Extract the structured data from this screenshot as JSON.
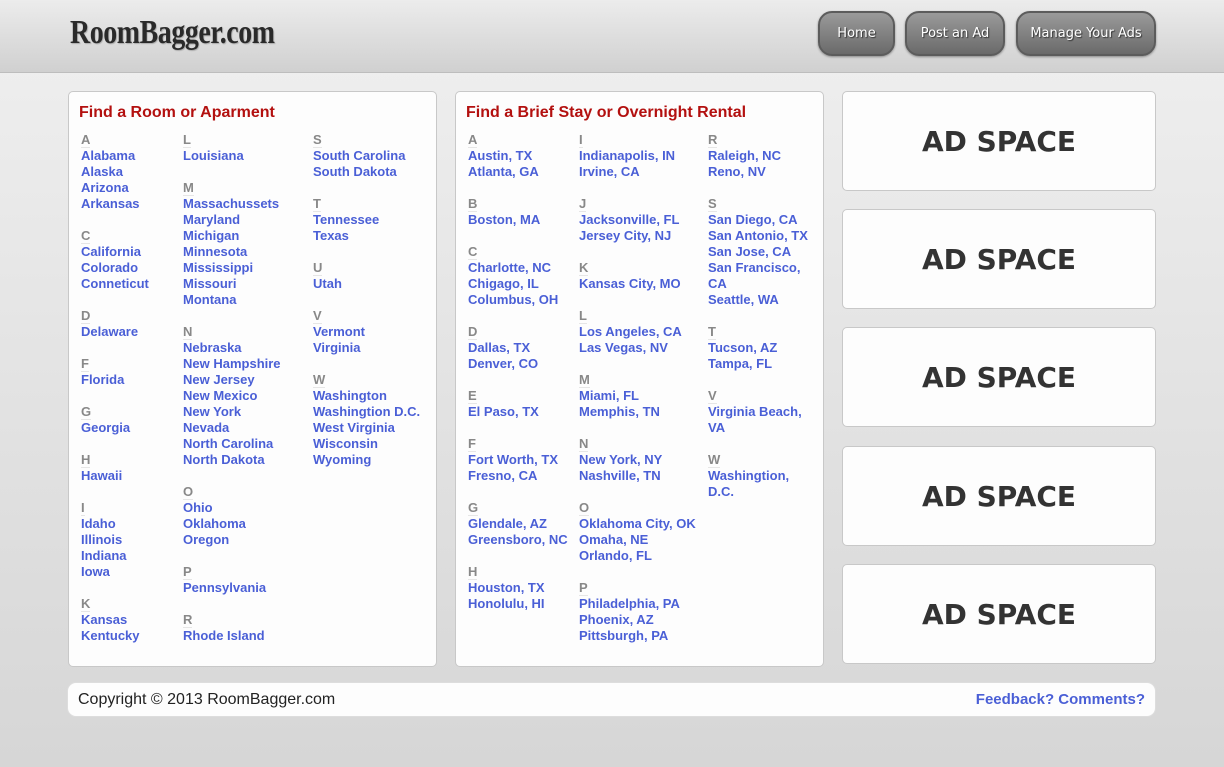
{
  "header": {
    "logo": "RoomBagger.com",
    "nav": [
      "Home",
      "Post an Ad",
      "Manage Your Ads"
    ]
  },
  "rooms": {
    "title": "Find a Room or Aparment",
    "columns": [
      [
        {
          "letter": "A",
          "items": [
            "Alabama",
            "Alaska",
            "Arizona",
            "Arkansas"
          ]
        },
        {
          "letter": "C",
          "items": [
            "California",
            "Colorado",
            "Conneticut"
          ]
        },
        {
          "letter": "D",
          "items": [
            "Delaware"
          ]
        },
        {
          "letter": "F",
          "items": [
            "Florida"
          ]
        },
        {
          "letter": "G",
          "items": [
            "Georgia"
          ]
        },
        {
          "letter": "H",
          "items": [
            "Hawaii"
          ]
        },
        {
          "letter": "I",
          "items": [
            "Idaho",
            "Illinois",
            "Indiana",
            "Iowa"
          ]
        },
        {
          "letter": "K",
          "items": [
            "Kansas",
            "Kentucky"
          ]
        }
      ],
      [
        {
          "letter": "L",
          "items": [
            "Louisiana"
          ]
        },
        {
          "letter": "M",
          "items": [
            "Massachussets",
            "Maryland",
            "Michigan",
            "Minnesota",
            "Mississippi",
            "Missouri",
            "Montana"
          ]
        },
        {
          "letter": "N",
          "items": [
            "Nebraska",
            "New Hampshire",
            "New Jersey",
            "New Mexico",
            "New York",
            "Nevada",
            "North Carolina",
            "North Dakota"
          ]
        },
        {
          "letter": "O",
          "items": [
            "Ohio",
            "Oklahoma",
            "Oregon"
          ]
        },
        {
          "letter": "P",
          "items": [
            "Pennsylvania"
          ]
        },
        {
          "letter": "R",
          "items": [
            "Rhode Island"
          ]
        }
      ],
      [
        {
          "letter": "S",
          "items": [
            "South Carolina",
            "South Dakota"
          ]
        },
        {
          "letter": "T",
          "items": [
            "Tennessee",
            "Texas"
          ]
        },
        {
          "letter": "U",
          "items": [
            "Utah"
          ]
        },
        {
          "letter": "V",
          "items": [
            "Vermont",
            "Virginia"
          ]
        },
        {
          "letter": "W",
          "items": [
            "Washington",
            "Washingtion D.C.",
            "West Virginia",
            "Wisconsin",
            "Wyoming"
          ]
        }
      ]
    ]
  },
  "stays": {
    "title": "Find a Brief Stay or Overnight Rental",
    "columns": [
      [
        {
          "letter": "A",
          "items": [
            "Austin, TX",
            "Atlanta, GA"
          ]
        },
        {
          "letter": "B",
          "items": [
            "Boston, MA"
          ]
        },
        {
          "letter": "C",
          "items": [
            "Charlotte, NC",
            "Chigago, IL",
            "Columbus, OH"
          ]
        },
        {
          "letter": "D",
          "items": [
            "Dallas, TX",
            "Denver, CO"
          ]
        },
        {
          "letter": "E",
          "items": [
            "El Paso, TX"
          ]
        },
        {
          "letter": "F",
          "items": [
            "Fort Worth, TX",
            "Fresno, CA"
          ]
        },
        {
          "letter": "G",
          "items": [
            "Glendale, AZ",
            "Greensboro, NC"
          ]
        },
        {
          "letter": "H",
          "items": [
            "Houston, TX",
            "Honolulu, HI"
          ]
        }
      ],
      [
        {
          "letter": "I",
          "items": [
            "Indianapolis, IN",
            "Irvine, CA"
          ]
        },
        {
          "letter": "J",
          "items": [
            "Jacksonville, FL",
            "Jersey City, NJ"
          ]
        },
        {
          "letter": "K",
          "items": [
            "Kansas City, MO"
          ]
        },
        {
          "letter": "L",
          "items": [
            "Los Angeles, CA",
            "Las Vegas, NV"
          ]
        },
        {
          "letter": "M",
          "items": [
            "Miami, FL",
            "Memphis, TN"
          ]
        },
        {
          "letter": "N",
          "items": [
            "New York, NY",
            "Nashville, TN"
          ]
        },
        {
          "letter": "O",
          "items": [
            "Oklahoma City, OK",
            "Omaha, NE",
            "Orlando, FL"
          ]
        },
        {
          "letter": "P",
          "items": [
            "Philadelphia, PA",
            "Phoenix, AZ",
            "Pittsburgh, PA"
          ]
        }
      ],
      [
        {
          "letter": "R",
          "items": [
            "Raleigh, NC",
            "Reno, NV"
          ]
        },
        {
          "letter": "S",
          "items": [
            "San Diego, CA",
            "San Antonio, TX",
            "San Jose, CA",
            "San Francisco, CA",
            "Seattle, WA"
          ]
        },
        {
          "letter": "T",
          "items": [
            "Tucson, AZ",
            "Tampa, FL"
          ]
        },
        {
          "letter": "V",
          "items": [
            "Virginia Beach, VA"
          ]
        },
        {
          "letter": "W",
          "items": [
            "Washingtion, D.C."
          ]
        }
      ]
    ]
  },
  "ads": [
    "AD SPACE",
    "AD SPACE",
    "AD SPACE",
    "AD SPACE",
    "AD SPACE"
  ],
  "footer": {
    "copyright": "Copyright © 2013 RoomBagger.com",
    "feedback": "Feedback? Comments?"
  }
}
